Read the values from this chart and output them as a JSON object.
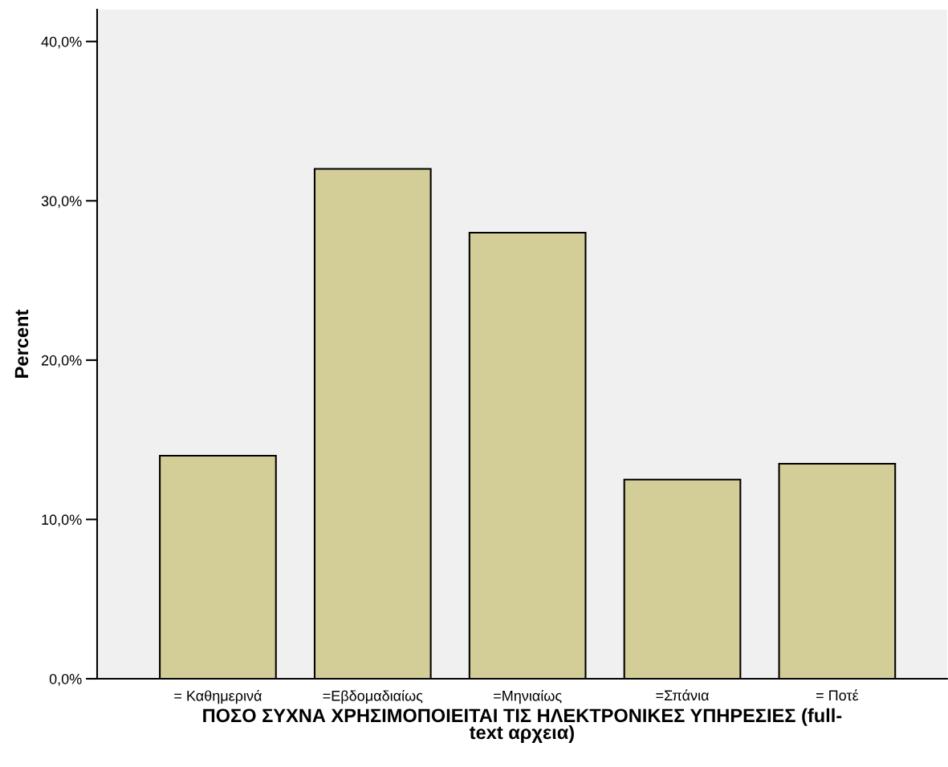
{
  "chart_data": {
    "type": "bar",
    "xlabel": "ΠΟΣΟ ΣΥΧΝΑ ΧΡΗΣΙΜΟΠΟΙΕΙΤΑΙ ΤΙΣ ΗΛΕΚΤΡΟΝΙΚΕΣ ΥΠΗΡΕΣΙΕΣ (full-\ntext αρχεια)",
    "ylabel": "Percent",
    "categories": [
      "= Καθημερινά",
      "=Εβδομαδιαίως",
      "=Μηνιαίως",
      "=Σπάνια",
      "= Ποτέ"
    ],
    "values": [
      14.0,
      32.0,
      28.0,
      12.5,
      13.5
    ],
    "color": "#d3ce97",
    "ylim": [
      0,
      42
    ],
    "yticks": [
      {
        "value": 0,
        "label": "0,0%"
      },
      {
        "value": 10,
        "label": "10,0%"
      },
      {
        "value": 20,
        "label": "20,0%"
      },
      {
        "value": 30,
        "label": "30,0%"
      },
      {
        "value": 40,
        "label": "40,0%"
      }
    ],
    "grid": false
  }
}
